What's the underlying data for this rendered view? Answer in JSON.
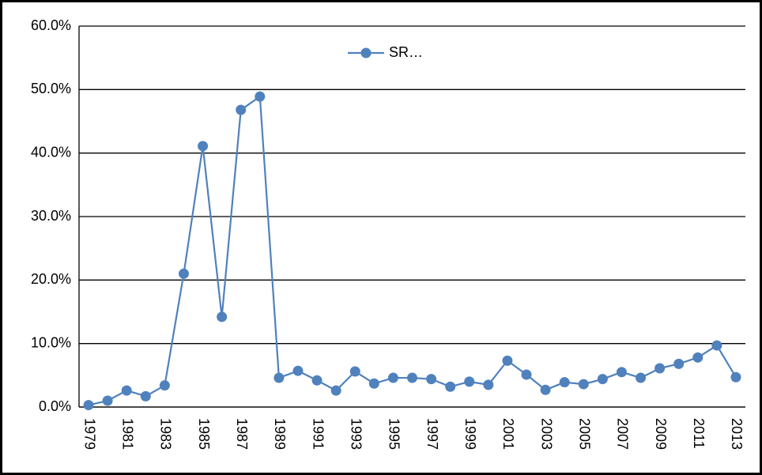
{
  "chart_data": {
    "type": "line",
    "categories": [
      "1979",
      null,
      "1981",
      null,
      "1983",
      null,
      "1985",
      null,
      "1987",
      null,
      "1989",
      null,
      "1991",
      null,
      "1993",
      null,
      "1995",
      null,
      "1997",
      null,
      "1999",
      null,
      "2001",
      null,
      "2003",
      null,
      "2005",
      null,
      "2007",
      null,
      "2009",
      null,
      "2011",
      null,
      "2013"
    ],
    "series": [
      {
        "name": "SR…",
        "color": "#4f81bd",
        "values": [
          0.3,
          1.0,
          2.6,
          1.7,
          3.4,
          21.0,
          41.1,
          14.2,
          46.8,
          48.9,
          4.6,
          5.7,
          4.2,
          2.6,
          5.6,
          3.7,
          4.6,
          4.6,
          4.4,
          3.2,
          4.0,
          3.5,
          7.3,
          5.1,
          2.7,
          3.9,
          3.6,
          4.4,
          5.5,
          4.6,
          6.1,
          6.8,
          7.8,
          9.7,
          4.7
        ]
      }
    ],
    "ylim": [
      0,
      60
    ],
    "yticks": [
      {
        "value": 0,
        "label": "0.0%"
      },
      {
        "value": 10,
        "label": "10.0%"
      },
      {
        "value": 20,
        "label": "20.0%"
      },
      {
        "value": 30,
        "label": "30.0%"
      },
      {
        "value": 40,
        "label": "40.0%"
      },
      {
        "value": 50,
        "label": "50.0%"
      },
      {
        "value": 60,
        "label": "60.0%"
      }
    ],
    "grid": true,
    "legend": "top"
  }
}
